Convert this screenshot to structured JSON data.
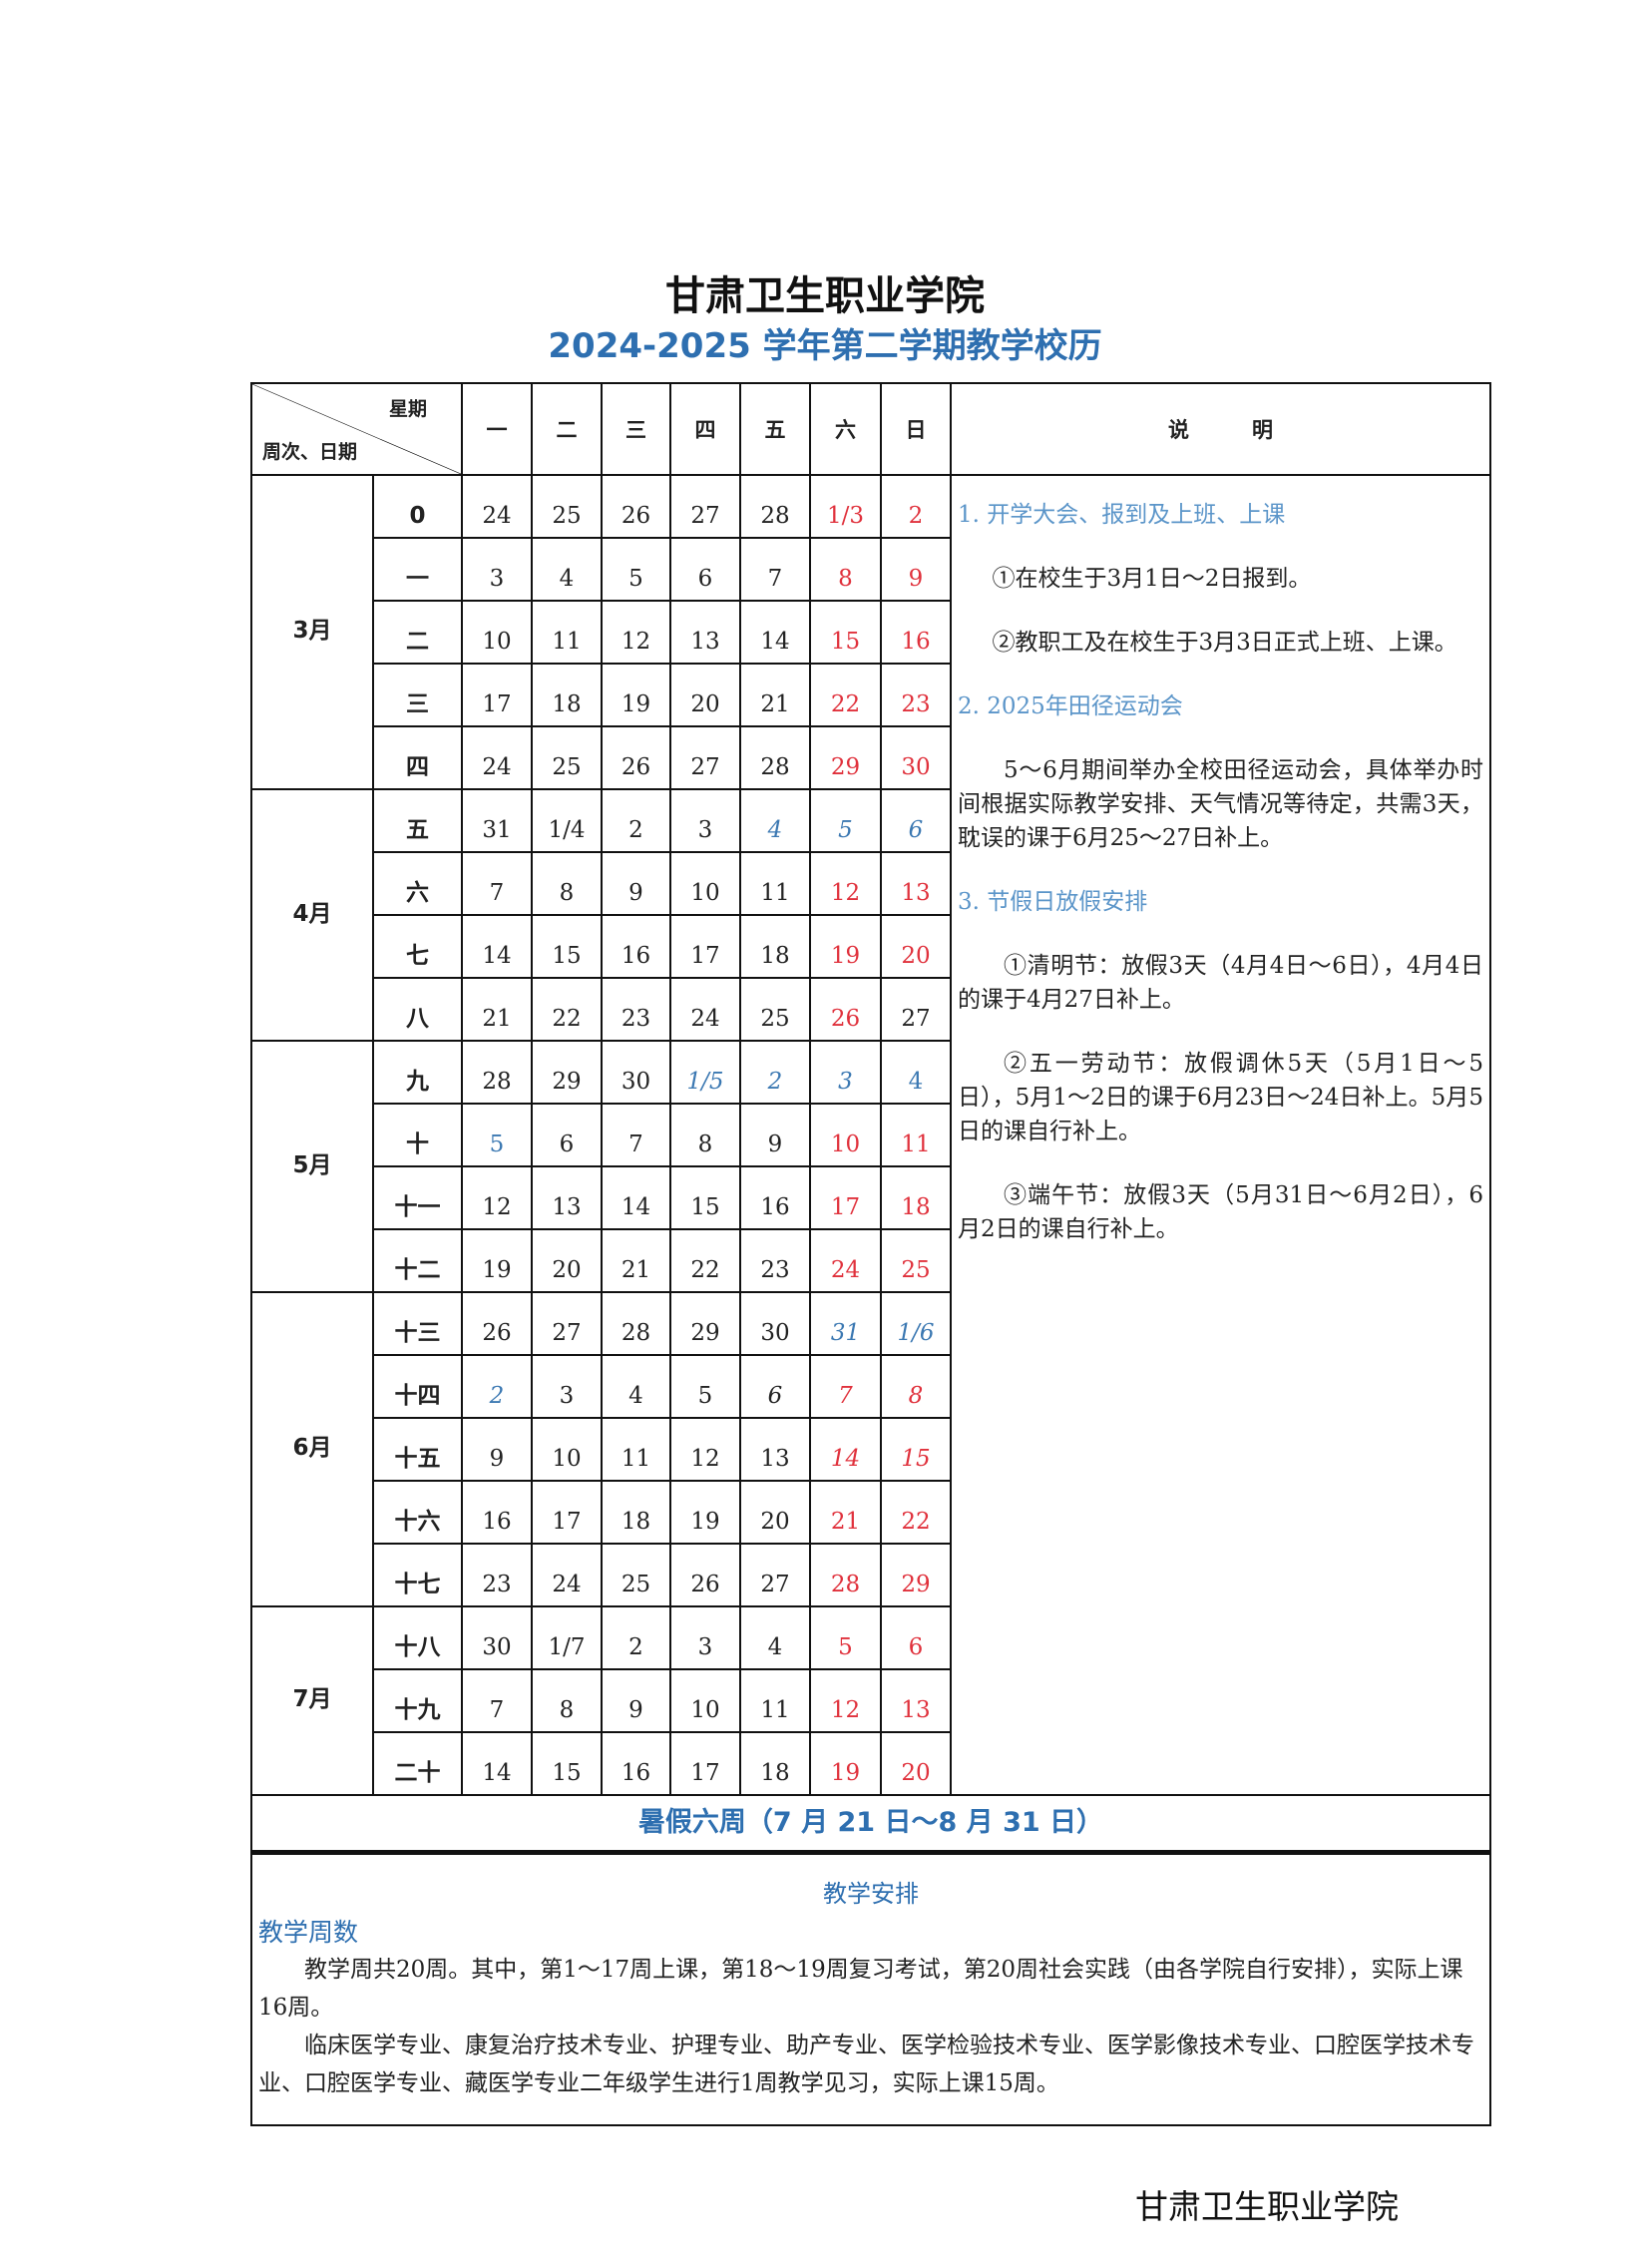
{
  "title": "甘肃卫生职业学院",
  "subtitle": "2024-2025 学年第二学期教学校历",
  "colors": {
    "title_blue": "#2e6fb0",
    "holiday_red": "#e0313c",
    "adjust_blue": "#3b78b2",
    "note_heading": "#5b95c9"
  },
  "header": {
    "weekday_label": "星期",
    "week_date_label": "周次、日期",
    "weekdays": [
      "一",
      "二",
      "三",
      "四",
      "五",
      "六",
      "日"
    ],
    "notes_label": "说　　　明"
  },
  "months": [
    {
      "label": "3月",
      "weeks": 5
    },
    {
      "label": "4月",
      "weeks": 4
    },
    {
      "label": "5月",
      "weeks": 4
    },
    {
      "label": "6月",
      "weeks": 5
    },
    {
      "label": "7月",
      "weeks": 3
    }
  ],
  "rows": [
    {
      "week": "0",
      "days": [
        {
          "t": "24"
        },
        {
          "t": "25"
        },
        {
          "t": "26"
        },
        {
          "t": "27"
        },
        {
          "t": "28"
        },
        {
          "t": "1/3",
          "c": "red"
        },
        {
          "t": "2",
          "c": "red"
        }
      ]
    },
    {
      "week": "一",
      "days": [
        {
          "t": "3"
        },
        {
          "t": "4"
        },
        {
          "t": "5"
        },
        {
          "t": "6"
        },
        {
          "t": "7"
        },
        {
          "t": "8",
          "c": "red"
        },
        {
          "t": "9",
          "c": "red"
        }
      ]
    },
    {
      "week": "二",
      "days": [
        {
          "t": "10"
        },
        {
          "t": "11"
        },
        {
          "t": "12"
        },
        {
          "t": "13"
        },
        {
          "t": "14"
        },
        {
          "t": "15",
          "c": "red"
        },
        {
          "t": "16",
          "c": "red"
        }
      ]
    },
    {
      "week": "三",
      "days": [
        {
          "t": "17"
        },
        {
          "t": "18"
        },
        {
          "t": "19"
        },
        {
          "t": "20"
        },
        {
          "t": "21"
        },
        {
          "t": "22",
          "c": "red"
        },
        {
          "t": "23",
          "c": "red"
        }
      ]
    },
    {
      "week": "四",
      "days": [
        {
          "t": "24"
        },
        {
          "t": "25"
        },
        {
          "t": "26"
        },
        {
          "t": "27"
        },
        {
          "t": "28"
        },
        {
          "t": "29",
          "c": "red"
        },
        {
          "t": "30",
          "c": "red"
        }
      ]
    },
    {
      "week": "五",
      "days": [
        {
          "t": "31"
        },
        {
          "t": "1/4"
        },
        {
          "t": "2"
        },
        {
          "t": "3"
        },
        {
          "t": "4",
          "c": "blue",
          "i": true
        },
        {
          "t": "5",
          "c": "blue",
          "i": true
        },
        {
          "t": "6",
          "c": "blue",
          "i": true
        }
      ]
    },
    {
      "week": "六",
      "days": [
        {
          "t": "7"
        },
        {
          "t": "8"
        },
        {
          "t": "9"
        },
        {
          "t": "10"
        },
        {
          "t": "11"
        },
        {
          "t": "12",
          "c": "red"
        },
        {
          "t": "13",
          "c": "red"
        }
      ]
    },
    {
      "week": "七",
      "days": [
        {
          "t": "14"
        },
        {
          "t": "15"
        },
        {
          "t": "16"
        },
        {
          "t": "17"
        },
        {
          "t": "18"
        },
        {
          "t": "19",
          "c": "red"
        },
        {
          "t": "20",
          "c": "red"
        }
      ]
    },
    {
      "week": "八",
      "days": [
        {
          "t": "21"
        },
        {
          "t": "22"
        },
        {
          "t": "23"
        },
        {
          "t": "24"
        },
        {
          "t": "25"
        },
        {
          "t": "26",
          "c": "red"
        },
        {
          "t": "27"
        }
      ]
    },
    {
      "week": "九",
      "days": [
        {
          "t": "28"
        },
        {
          "t": "29"
        },
        {
          "t": "30"
        },
        {
          "t": "1/5",
          "c": "blue",
          "i": true
        },
        {
          "t": "2",
          "c": "blue",
          "i": true
        },
        {
          "t": "3",
          "c": "blue",
          "i": true
        },
        {
          "t": "4",
          "c": "blue"
        }
      ]
    },
    {
      "week": "十",
      "days": [
        {
          "t": "5",
          "c": "blue"
        },
        {
          "t": "6"
        },
        {
          "t": "7"
        },
        {
          "t": "8"
        },
        {
          "t": "9"
        },
        {
          "t": "10",
          "c": "red"
        },
        {
          "t": "11",
          "c": "red"
        }
      ]
    },
    {
      "week": "十一",
      "days": [
        {
          "t": "12"
        },
        {
          "t": "13"
        },
        {
          "t": "14"
        },
        {
          "t": "15"
        },
        {
          "t": "16"
        },
        {
          "t": "17",
          "c": "red"
        },
        {
          "t": "18",
          "c": "red"
        }
      ]
    },
    {
      "week": "十二",
      "days": [
        {
          "t": "19"
        },
        {
          "t": "20"
        },
        {
          "t": "21"
        },
        {
          "t": "22"
        },
        {
          "t": "23"
        },
        {
          "t": "24",
          "c": "red"
        },
        {
          "t": "25",
          "c": "red"
        }
      ]
    },
    {
      "week": "十三",
      "days": [
        {
          "t": "26"
        },
        {
          "t": "27"
        },
        {
          "t": "28"
        },
        {
          "t": "29"
        },
        {
          "t": "30"
        },
        {
          "t": "31",
          "c": "blue",
          "i": true
        },
        {
          "t": "1/6",
          "c": "blue",
          "i": true
        }
      ]
    },
    {
      "week": "十四",
      "days": [
        {
          "t": "2",
          "c": "blue",
          "i": true
        },
        {
          "t": "3"
        },
        {
          "t": "4"
        },
        {
          "t": "5"
        },
        {
          "t": "6",
          "i": true
        },
        {
          "t": "7",
          "c": "red",
          "i": true
        },
        {
          "t": "8",
          "c": "red",
          "i": true
        }
      ]
    },
    {
      "week": "十五",
      "days": [
        {
          "t": "9"
        },
        {
          "t": "10"
        },
        {
          "t": "11"
        },
        {
          "t": "12"
        },
        {
          "t": "13"
        },
        {
          "t": "14",
          "c": "red",
          "i": true
        },
        {
          "t": "15",
          "c": "red",
          "i": true
        }
      ]
    },
    {
      "week": "十六",
      "days": [
        {
          "t": "16"
        },
        {
          "t": "17"
        },
        {
          "t": "18"
        },
        {
          "t": "19"
        },
        {
          "t": "20"
        },
        {
          "t": "21",
          "c": "red"
        },
        {
          "t": "22",
          "c": "red"
        }
      ]
    },
    {
      "week": "十七",
      "days": [
        {
          "t": "23"
        },
        {
          "t": "24"
        },
        {
          "t": "25"
        },
        {
          "t": "26"
        },
        {
          "t": "27"
        },
        {
          "t": "28",
          "c": "red"
        },
        {
          "t": "29",
          "c": "red"
        }
      ]
    },
    {
      "week": "十八",
      "days": [
        {
          "t": "30"
        },
        {
          "t": "1/7"
        },
        {
          "t": "2"
        },
        {
          "t": "3"
        },
        {
          "t": "4"
        },
        {
          "t": "5",
          "c": "red"
        },
        {
          "t": "6",
          "c": "red"
        }
      ]
    },
    {
      "week": "十九",
      "days": [
        {
          "t": "7"
        },
        {
          "t": "8"
        },
        {
          "t": "9"
        },
        {
          "t": "10"
        },
        {
          "t": "11"
        },
        {
          "t": "12",
          "c": "red"
        },
        {
          "t": "13",
          "c": "red"
        }
      ]
    },
    {
      "week": "二十",
      "days": [
        {
          "t": "14"
        },
        {
          "t": "15"
        },
        {
          "t": "16"
        },
        {
          "t": "17"
        },
        {
          "t": "18"
        },
        {
          "t": "19",
          "c": "red"
        },
        {
          "t": "20",
          "c": "red"
        }
      ]
    }
  ],
  "notes": {
    "h1": "1. 开学大会、报到及上班、上课",
    "n1a": "①在校生于3月1日～2日报到。",
    "n1b": "②教职工及在校生于3月3日正式上班、上课。",
    "h2": "2. 2025年田径运动会",
    "n2": "5～6月期间举办全校田径运动会，具体举办时间根据实际教学安排、天气情况等待定，共需3天，耽误的课于6月25～27日补上。",
    "h3": "3. 节假日放假安排",
    "n3a": "①清明节：放假3天（4月4日～6日），4月4日的课于4月27日补上。",
    "n3b": "②五一劳动节：放假调休5天（5月1日～5日），5月1～2日的课于6月23日～24日补上。5月5日的课自行补上。",
    "n3c": "③端午节：放假3天（5月31日～6月2日），6月2日的课自行补上。"
  },
  "summer": "暑假六周（7 月 21 日～8 月 31 日）",
  "teaching": {
    "title": "教学安排",
    "subtitle": "教学周数",
    "p1": "教学周共20周。其中，第1～17周上课，第18～19周复习考试，第20周社会实践（由各学院自行安排），实际上课16周。",
    "p2": "临床医学专业、康复治疗技术专业、护理专业、助产专业、医学检验技术专业、医学影像技术专业、口腔医学技术专业、口腔医学专业、藏医学专业二年级学生进行1周教学见习，实际上课15周。"
  },
  "footer": "甘肃卫生职业学院"
}
